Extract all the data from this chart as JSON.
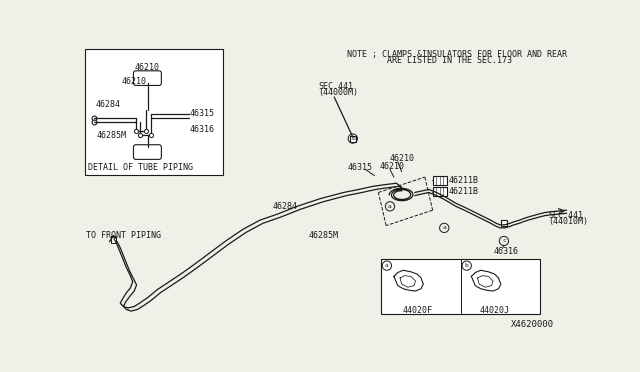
{
  "bg_color": "#f0efe8",
  "line_color": "#1a1a1a",
  "text_color": "#1a1a1a",
  "note_line1": "NOTE ; CLAMPS &INSULATORS FOR FLOOR AND REAR",
  "note_line2": "        ARE LISTED IN THE SEC.173",
  "diagram_id": "X4620000",
  "inset_title": "DETAIL OF TUBE PIPING",
  "to_front": "TO FRONT PIPING",
  "sec441_44000M_l1": "SEC.441",
  "sec441_44000M_l2": "(44000M)",
  "sec441_44010M_l1": "SEC.441",
  "sec441_44010M_l2": "(44010M)",
  "p46210": "46210",
  "p46284": "46284",
  "p46285M": "46285M",
  "p46315": "46315",
  "p46316": "46316",
  "p46211B": "46211B",
  "p44020F": "44020F",
  "p44020J": "44020J"
}
